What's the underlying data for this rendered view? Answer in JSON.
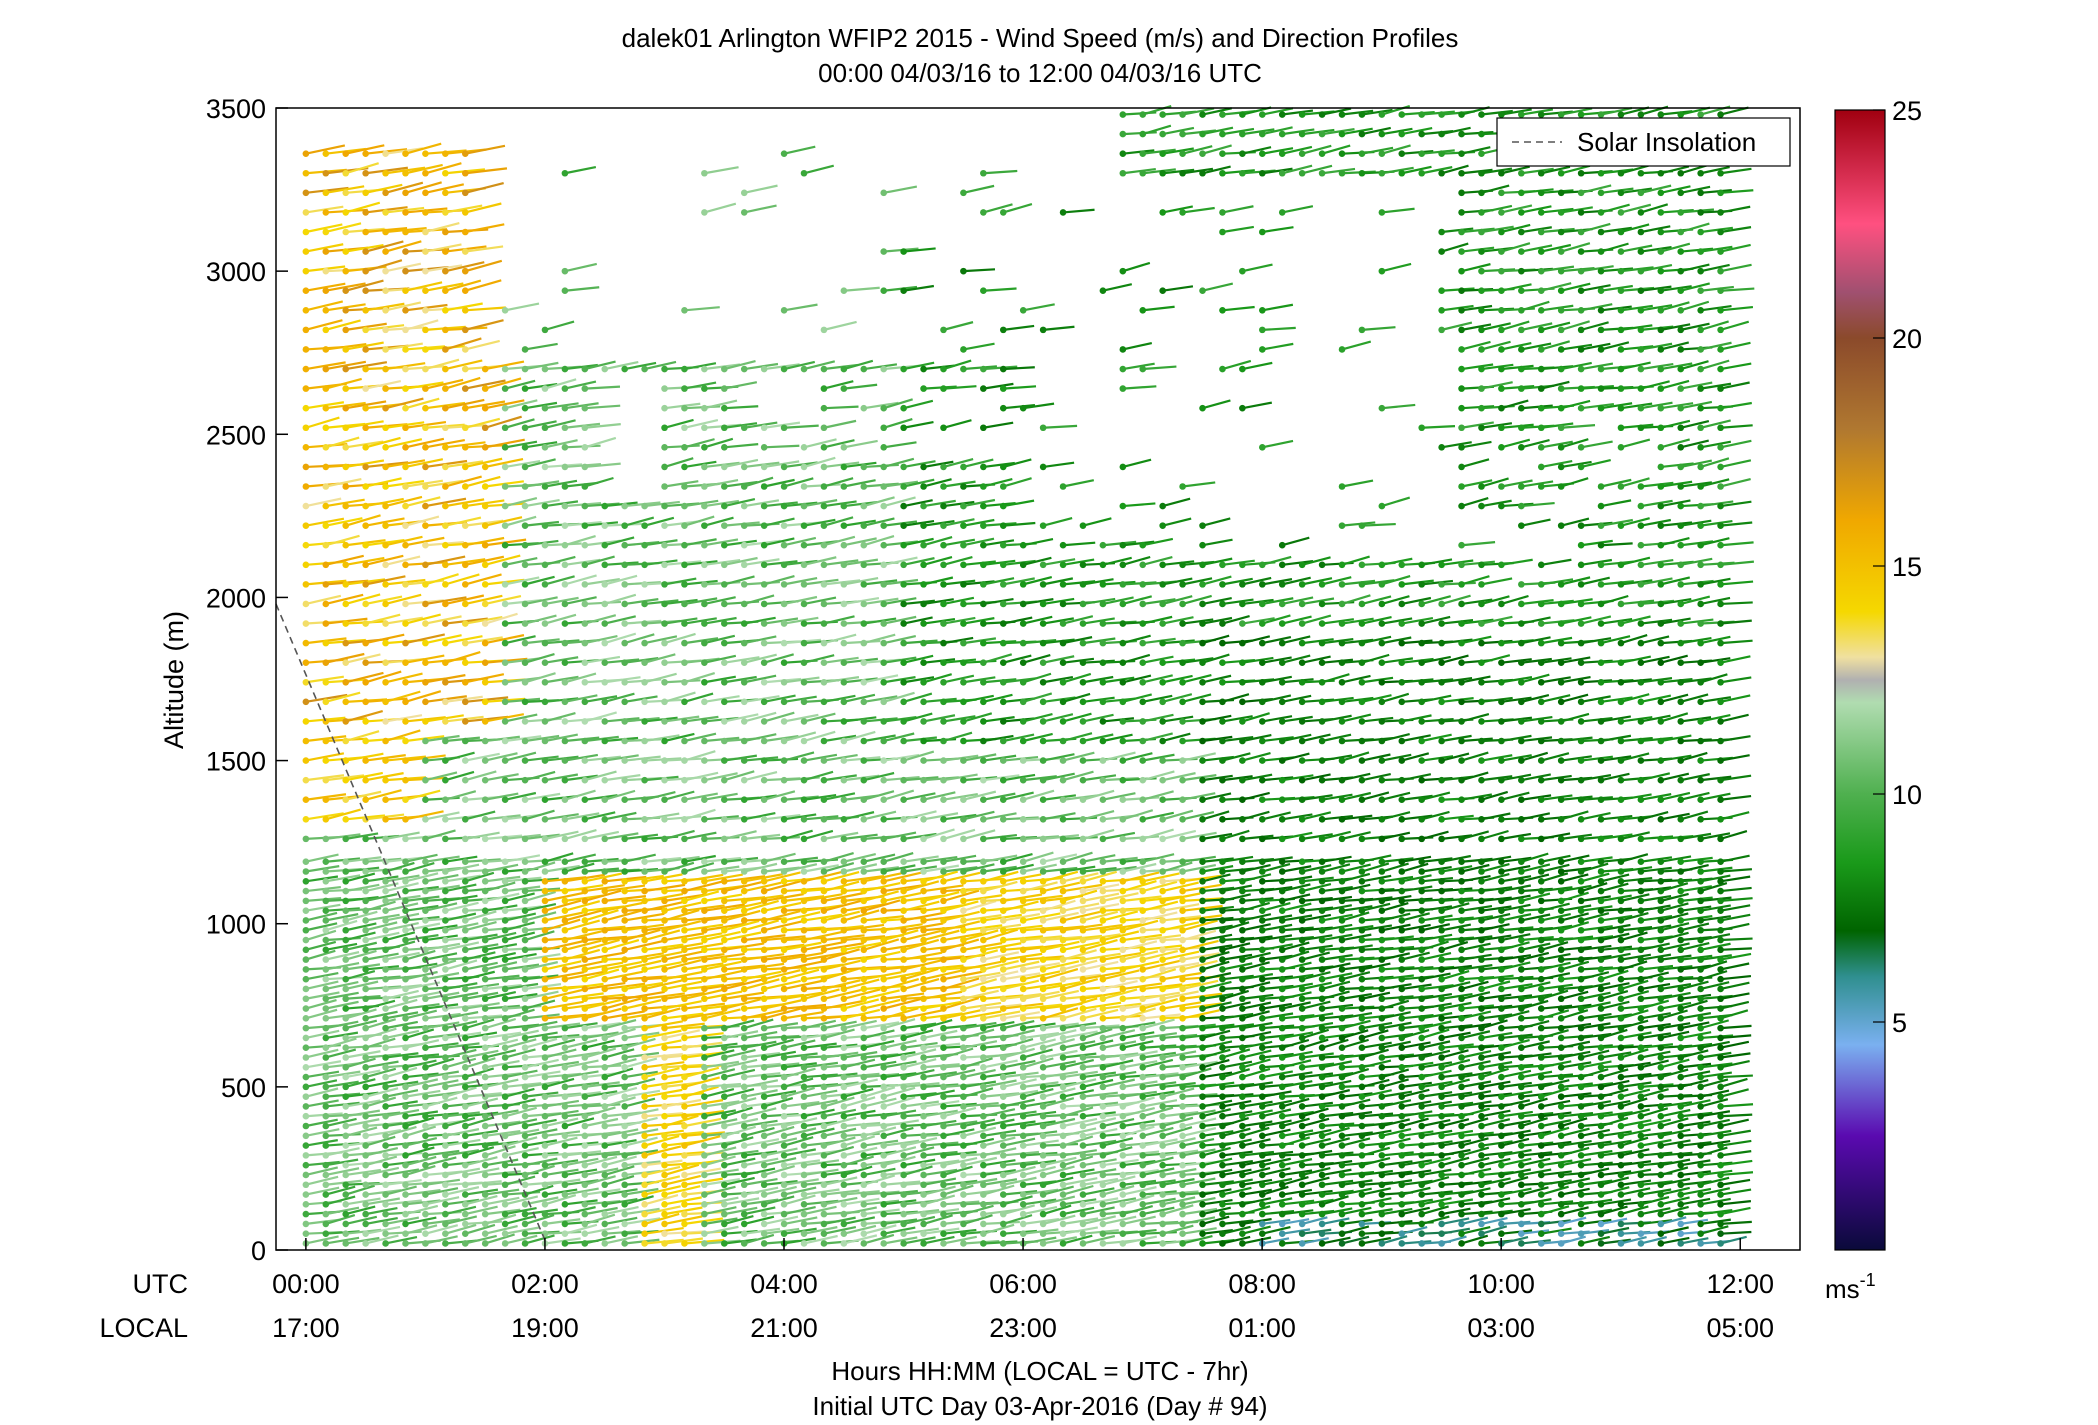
{
  "chart_data": {
    "type": "scatter",
    "title": "dalek01 Arlington WFIP2 2015 - Wind Speed (m/s) and Direction Profiles",
    "subtitle": "00:00 04/03/16 to 12:00 04/03/16  UTC",
    "ylabel": "Altitude (m)",
    "xlabel": "Hours HH:MM  (LOCAL = UTC - 7hr)",
    "xlabel2": "Initial UTC Day 03-Apr-2016 (Day # 94)",
    "x_row_label_utc": "UTC",
    "x_row_label_local": "LOCAL",
    "xlim": [
      -0.25,
      12.5
    ],
    "ylim": [
      0,
      3500
    ],
    "yticks": [
      "0",
      "500",
      "1000",
      "1500",
      "2000",
      "2500",
      "3000",
      "3500"
    ],
    "ytick_values": [
      0,
      500,
      1000,
      1500,
      2000,
      2500,
      3000,
      3500
    ],
    "xtick_values": [
      0,
      2,
      4,
      6,
      8,
      10,
      12
    ],
    "xticks_utc": [
      "00:00",
      "02:00",
      "04:00",
      "06:00",
      "08:00",
      "10:00",
      "12:00"
    ],
    "xticks_local": [
      "17:00",
      "19:00",
      "21:00",
      "23:00",
      "01:00",
      "03:00",
      "05:00"
    ],
    "legend": {
      "label": "Solar Insolation",
      "placement": "top-right"
    },
    "solar_insolation_line": {
      "x": [
        -0.25,
        2.0
      ],
      "y": [
        1980,
        30
      ],
      "color": "#555555"
    },
    "colorbar": {
      "label": "ms",
      "label_exp": "-1",
      "range": [
        0,
        25
      ],
      "ticks": [
        "5",
        "10",
        "15",
        "20",
        "25"
      ],
      "tick_values": [
        5,
        10,
        15,
        20,
        25
      ],
      "stops": [
        {
          "v": 0,
          "color": "#0a0a3a"
        },
        {
          "v": 2.5,
          "color": "#5a0ab0"
        },
        {
          "v": 4.5,
          "color": "#7ab0f0"
        },
        {
          "v": 6,
          "color": "#2f8f8f"
        },
        {
          "v": 7,
          "color": "#006400"
        },
        {
          "v": 8.5,
          "color": "#1a9a1a"
        },
        {
          "v": 10,
          "color": "#4fb04f"
        },
        {
          "v": 12,
          "color": "#b0dcb0"
        },
        {
          "v": 12.5,
          "color": "#b0b0b0"
        },
        {
          "v": 13,
          "color": "#f0e0a0"
        },
        {
          "v": 14,
          "color": "#f5d800"
        },
        {
          "v": 16,
          "color": "#f0a800"
        },
        {
          "v": 18,
          "color": "#b07830"
        },
        {
          "v": 20,
          "color": "#8b4a2b"
        },
        {
          "v": 21,
          "color": "#a05070"
        },
        {
          "v": 22.5,
          "color": "#ff5080"
        },
        {
          "v": 25,
          "color": "#a00010"
        }
      ]
    },
    "profiles": {
      "time_start": 0,
      "time_end": 12,
      "time_step": 0.1667,
      "altitude_step_low": 30,
      "altitude_low_max": 1200,
      "altitude_step_high": 60,
      "altitude_max": 3500,
      "direction_deg": 250
    }
  }
}
